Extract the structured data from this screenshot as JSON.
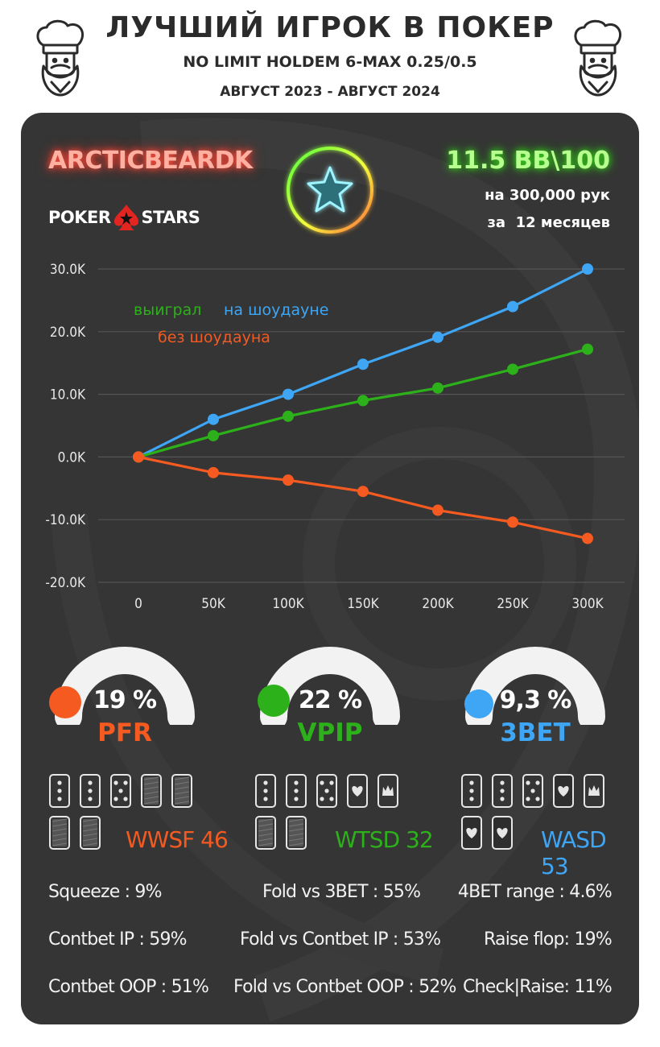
{
  "header": {
    "title": "ЛУЧШИЙ ИГРОК В ПОКЕР",
    "subtitle": "NO LIMIT HOLDEM 6-MAX 0.25/0.5",
    "period": "АВГУСТ 2023 - АВГУСТ 2024"
  },
  "player": {
    "name": "ARCTICBEARDK",
    "site_left": "POKER",
    "site_right": "STARS",
    "winrate": "11.5 BB\\100",
    "hands": "на 300,000 рук",
    "months": "за  12 месяцев"
  },
  "colors": {
    "green": "#2db11a",
    "blue": "#3ea6f5",
    "orange": "#f55a20",
    "card": "#353535"
  },
  "chart_data": {
    "type": "line",
    "x": [
      0,
      50000,
      100000,
      150000,
      200000,
      250000,
      300000
    ],
    "x_tick_labels": [
      "0",
      "50K",
      "100K",
      "150K",
      "200K",
      "250K",
      "300K"
    ],
    "y_tick_labels": [
      "30.0K",
      "20.0K",
      "10.0K",
      "0.0K",
      "-10.0K",
      "-20.0K"
    ],
    "y_ticks": [
      30000,
      20000,
      10000,
      0,
      -10000,
      -20000
    ],
    "ylim": [
      -20000,
      30000
    ],
    "xlim": [
      0,
      300000
    ],
    "grid": true,
    "legend_position": "top-left",
    "legend_prefix": "выиграл",
    "series": [
      {
        "name": "на шоудауне",
        "color": "#3ea6f5",
        "values": [
          0,
          6000,
          10000,
          14800,
          19100,
          24000,
          30000
        ]
      },
      {
        "name": "",
        "color": "#2db11a",
        "values": [
          0,
          3400,
          6500,
          9000,
          11000,
          14000,
          17200
        ]
      },
      {
        "name": "без шоудауна",
        "color": "#f55a20",
        "values": [
          0,
          -2500,
          -3700,
          -5500,
          -8500,
          -10400,
          -13000
        ]
      }
    ]
  },
  "gauges": [
    {
      "value": "19 %",
      "label": "PFR",
      "color": "#f55a20",
      "fraction": 0.19
    },
    {
      "value": "22 %",
      "label": "VPIP",
      "color": "#2db11a",
      "fraction": 0.22
    },
    {
      "value": "9,3 %",
      "label": "3BET",
      "color": "#3ea6f5",
      "fraction": 0.093
    }
  ],
  "showdown": [
    {
      "label": "WWSF 46",
      "color": "#f55a20",
      "value": 46
    },
    {
      "label": "WTSD 32",
      "color": "#2db11a",
      "value": 32
    },
    {
      "label": "WASD 53",
      "color": "#3ea6f5",
      "value": 53
    }
  ],
  "stats": {
    "col1": [
      "Squeeze : 9%",
      "Contbet IP : 59%",
      "Contbet OOP : 51%"
    ],
    "col2": [
      "Fold vs 3BET : 55%",
      "Fold vs Contbet IP : 53%",
      "Fold vs Contbet OOP : 52%"
    ],
    "col3": [
      "4BET range : 4.6%",
      "Raise flop: 19%",
      "Check|Raise: 11%"
    ]
  }
}
